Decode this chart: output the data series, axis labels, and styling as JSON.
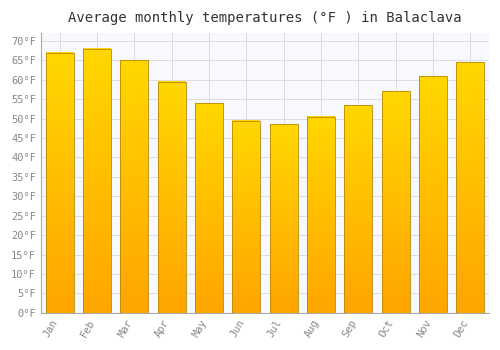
{
  "title": "Average monthly temperatures (°F ) in Balaclava",
  "months": [
    "Jan",
    "Feb",
    "Mar",
    "Apr",
    "May",
    "Jun",
    "Jul",
    "Aug",
    "Sep",
    "Oct",
    "Nov",
    "Dec"
  ],
  "values": [
    67,
    68,
    65,
    59.5,
    54,
    49.5,
    48.5,
    50.5,
    53.5,
    57,
    61,
    64.5
  ],
  "bar_color_bottom": "#FFA500",
  "bar_color_top": "#FFD700",
  "bar_edge_color": "#B8860B",
  "background_color": "#FFFFFF",
  "plot_bg_color": "#F8F8FF",
  "grid_color": "#D8D8D8",
  "yticks": [
    0,
    5,
    10,
    15,
    20,
    25,
    30,
    35,
    40,
    45,
    50,
    55,
    60,
    65,
    70
  ],
  "ylim": [
    0,
    72
  ],
  "title_fontsize": 10,
  "tick_fontsize": 7.5,
  "tick_color": "#888888",
  "font_family": "monospace"
}
